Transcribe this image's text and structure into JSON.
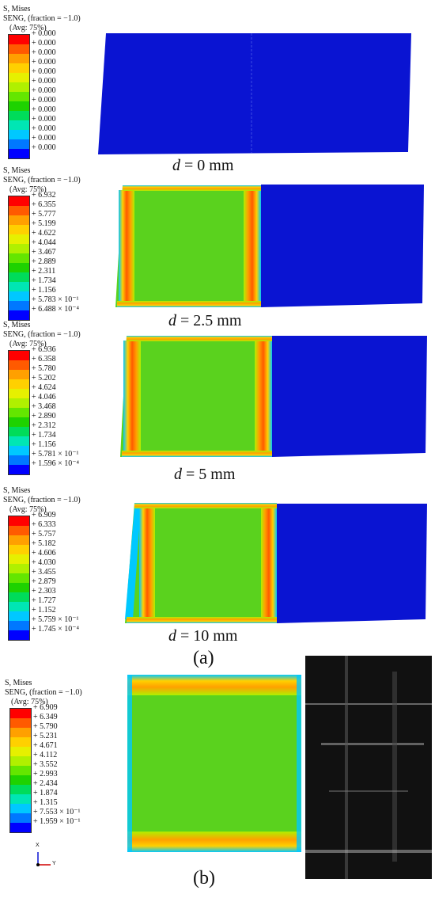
{
  "legend_header": {
    "line1": "S, Mises",
    "line2": "SENG, (fraction = −1.0)",
    "line3": "(Avg: 75%)"
  },
  "colors": {
    "scale": [
      "#ff0000",
      "#ff5a00",
      "#ffa000",
      "#ffd000",
      "#e6f000",
      "#b0f000",
      "#64e600",
      "#1ed200",
      "#00dc5a",
      "#00e6b4",
      "#00c8ff",
      "#0078ff",
      "#0000ff"
    ],
    "deform_blue": "#0a14d2",
    "field_green": "#5ad21e",
    "edge_orange": "#f0961e"
  },
  "panels": [
    {
      "values": [
        "+ 0.000",
        "+ 0.000",
        "+ 0.000",
        "+ 0.000",
        "+ 0.000",
        "+ 0.000",
        "+ 0.000",
        "+ 0.000",
        "+ 0.000",
        "+ 0.000",
        "+ 0.000",
        "+ 0.000",
        "+ 0.000"
      ],
      "caption_var": "d",
      "caption_rest": " = 0 mm"
    },
    {
      "values": [
        "+ 6.932",
        "+ 6.355",
        "+ 5.777",
        "+ 5.199",
        "+ 4.622",
        "+ 4.044",
        "+ 3.467",
        "+ 2.889",
        "+ 2.311",
        "+ 1.734",
        "+ 1.156",
        "+ 5.783 × 10⁻¹",
        "+ 6.488 × 10⁻⁴"
      ],
      "caption_var": "d",
      "caption_rest": " = 2.5 mm"
    },
    {
      "values": [
        "+ 6.936",
        "+ 6.358",
        "+ 5.780",
        "+ 5.202",
        "+ 4.624",
        "+ 4.046",
        "+ 3.468",
        "+ 2.890",
        "+ 2.312",
        "+ 1.734",
        "+ 1.156",
        "+ 5.781 × 10⁻¹",
        "+ 1.596 × 10⁻⁴"
      ],
      "caption_var": "d",
      "caption_rest": " = 5 mm"
    },
    {
      "values": [
        "+ 6.909",
        "+ 6.333",
        "+ 5.757",
        "+ 5.182",
        "+ 4.606",
        "+ 4.030",
        "+ 3.455",
        "+ 2.879",
        "+ 2.303",
        "+ 1.727",
        "+ 1.152",
        "+ 5.759 × 10⁻¹",
        "+ 1.745 × 10⁻⁴"
      ],
      "caption_var": "d",
      "caption_rest": " = 10 mm"
    },
    {
      "values": [
        "+ 6.909",
        "+ 6.349",
        "+ 5.790",
        "+ 5.231",
        "+ 4.671",
        "+ 4.112",
        "+ 3.552",
        "+ 2.993",
        "+ 2.434",
        "+ 1.874",
        "+ 1.315",
        "+ 7.553 × 10⁻¹",
        "+ 1.959 × 10⁻¹"
      ]
    }
  ],
  "sublabels": {
    "a": "(a)",
    "b": "(b)"
  },
  "axis_triad": {
    "x": "X",
    "y": "Y"
  }
}
